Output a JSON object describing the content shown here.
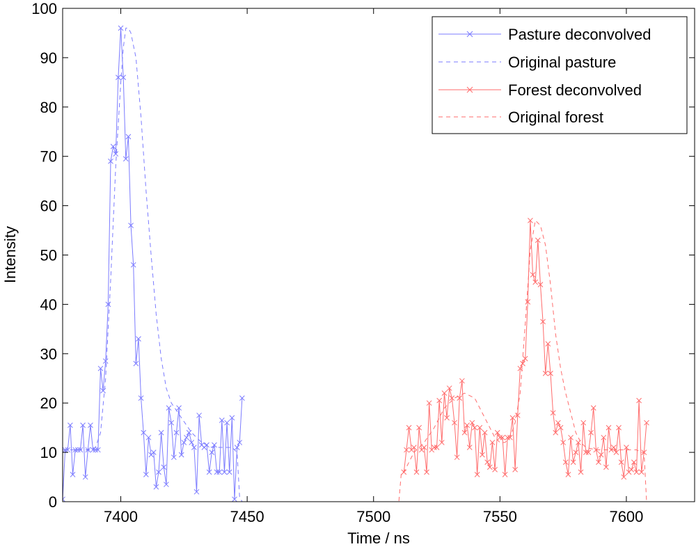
{
  "chart_data": {
    "type": "line",
    "xlabel": "Time / ns",
    "ylabel": "Intensity",
    "xlim": [
      7377,
      7627
    ],
    "ylim": [
      0,
      100
    ],
    "xticks": [
      7400,
      7450,
      7500,
      7550,
      7600
    ],
    "yticks": [
      0,
      10,
      20,
      30,
      40,
      50,
      60,
      70,
      80,
      90,
      100
    ],
    "grid": false,
    "legend_position": "top-right",
    "colors": {
      "pasture": "#7b7bff",
      "forest": "#ff6b6b",
      "axis": "#000000"
    },
    "series": [
      {
        "name": "Pasture deconvolved",
        "style": "solid-x",
        "color": "#7b7bff",
        "x": [
          7377,
          7378,
          7379,
          7380,
          7381,
          7382,
          7383,
          7384,
          7385,
          7386,
          7387,
          7388,
          7389,
          7390,
          7391,
          7392,
          7393,
          7394,
          7395,
          7396,
          7397,
          7398,
          7399,
          7400,
          7401,
          7402,
          7403,
          7404,
          7405,
          7406,
          7407,
          7408,
          7409,
          7410,
          7411,
          7412,
          7413,
          7414,
          7415,
          7416,
          7417,
          7418,
          7419,
          7420,
          7421,
          7422,
          7423,
          7424,
          7425,
          7426,
          7427,
          7428,
          7429,
          7430,
          7431,
          7432,
          7433,
          7434,
          7435,
          7436,
          7437,
          7438,
          7439,
          7440,
          7441,
          7442,
          7443,
          7444,
          7445,
          7446,
          7447,
          7448
        ],
        "y": [
          0.5,
          10.5,
          10.5,
          15.5,
          5.5,
          10.5,
          10.5,
          10.5,
          15.5,
          5,
          10.5,
          15.5,
          10.5,
          10.5,
          10.5,
          27,
          22.5,
          28.5,
          40,
          69,
          72,
          70.5,
          86,
          96,
          86,
          69.5,
          74,
          56,
          48,
          28,
          33,
          21,
          14,
          5.5,
          13,
          9.5,
          10,
          3,
          6,
          14,
          7,
          3.5,
          19,
          16,
          9,
          14,
          19,
          9.5,
          12,
          13,
          14,
          12,
          11,
          2,
          17.5,
          11.5,
          11,
          11.5,
          6,
          10,
          11.5,
          6,
          6,
          16.5,
          6,
          16,
          6,
          17,
          0.5,
          11,
          12,
          21
        ]
      },
      {
        "name": "Original pasture",
        "style": "dashed",
        "color": "#7b7bff",
        "x": [
          7377,
          7380,
          7385,
          7388,
          7390,
          7392,
          7394,
          7396,
          7398,
          7400,
          7401,
          7402,
          7403,
          7404,
          7406,
          7408,
          7410,
          7412,
          7414,
          7416,
          7418,
          7420,
          7424,
          7428,
          7432,
          7436,
          7440,
          7444,
          7446,
          7447,
          7448,
          7460,
          7480,
          7500,
          7520,
          7540,
          7560,
          7580,
          7600,
          7620,
          7627
        ],
        "y": [
          10.5,
          10.5,
          10.5,
          10.5,
          11,
          14,
          25,
          45,
          68,
          85,
          92,
          96,
          96,
          95,
          90,
          78,
          63,
          50,
          38,
          29,
          23,
          20,
          17,
          14,
          12,
          11,
          11,
          11,
          10,
          1,
          0,
          0,
          0,
          0,
          0,
          0,
          0,
          0,
          0,
          0,
          0
        ]
      },
      {
        "name": "Forest deconvolved",
        "style": "solid-x",
        "color": "#ff6b6b",
        "x": [
          7512,
          7513,
          7514,
          7515,
          7516,
          7517,
          7518,
          7519,
          7520,
          7521,
          7522,
          7523,
          7524,
          7525,
          7526,
          7527,
          7528,
          7529,
          7530,
          7531,
          7532,
          7533,
          7534,
          7535,
          7536,
          7537,
          7538,
          7539,
          7540,
          7541,
          7542,
          7543,
          7544,
          7545,
          7546,
          7547,
          7548,
          7549,
          7550,
          7551,
          7552,
          7553,
          7554,
          7555,
          7556,
          7557,
          7558,
          7559,
          7560,
          7561,
          7562,
          7563,
          7564,
          7565,
          7566,
          7567,
          7568,
          7569,
          7570,
          7571,
          7572,
          7573,
          7574,
          7575,
          7576,
          7577,
          7578,
          7579,
          7580,
          7581,
          7582,
          7583,
          7584,
          7585,
          7586,
          7587,
          7588,
          7589,
          7590,
          7591,
          7592,
          7593,
          7594,
          7595,
          7596,
          7597,
          7598,
          7599,
          7600,
          7601,
          7602,
          7603,
          7604,
          7605,
          7606,
          7607,
          7608
        ],
        "y": [
          6,
          10.5,
          15,
          10.5,
          11,
          6,
          15,
          10.5,
          11,
          6,
          20,
          10.5,
          11,
          11,
          20.5,
          12,
          22,
          17,
          23,
          21,
          16,
          9,
          21,
          24.5,
          14,
          15.5,
          11,
          16,
          15,
          5.5,
          15,
          9.5,
          14,
          8,
          7,
          12,
          6.5,
          14,
          13,
          13,
          5.5,
          13,
          13,
          17,
          6.5,
          17.5,
          27,
          28,
          29,
          40.5,
          57,
          46,
          44.5,
          53,
          44,
          36.5,
          26,
          32,
          26,
          18,
          14,
          16,
          15,
          12,
          8,
          5.5,
          13,
          8,
          10,
          12,
          6,
          16,
          10,
          10,
          14,
          19,
          10.5,
          8,
          9.5,
          13,
          7,
          15,
          10.5,
          11,
          10,
          15,
          8,
          5,
          11,
          6,
          6.5,
          8,
          6,
          20.5,
          6,
          10,
          16
        ]
      },
      {
        "name": "Original forest",
        "style": "dashed",
        "color": "#ff6b6b",
        "x": [
          7377,
          7400,
          7450,
          7500,
          7510,
          7511,
          7512,
          7516,
          7520,
          7524,
          7528,
          7532,
          7536,
          7540,
          7544,
          7548,
          7550,
          7552,
          7554,
          7556,
          7558,
          7560,
          7562,
          7564,
          7566,
          7568,
          7570,
          7572,
          7574,
          7576,
          7578,
          7580,
          7582,
          7584,
          7588,
          7592,
          7596,
          7600,
          7604,
          7606,
          7607,
          7608,
          7627
        ],
        "y": [
          0,
          0,
          0,
          0,
          0,
          6,
          6,
          10,
          12,
          15,
          19,
          21,
          22,
          21,
          17,
          13,
          12,
          12,
          13,
          16,
          22,
          36,
          51,
          57,
          56,
          52,
          44,
          34,
          27,
          22,
          18,
          14,
          12,
          11,
          10.5,
          10.5,
          10.5,
          10.5,
          10.5,
          10,
          10,
          0,
          0
        ]
      }
    ]
  }
}
